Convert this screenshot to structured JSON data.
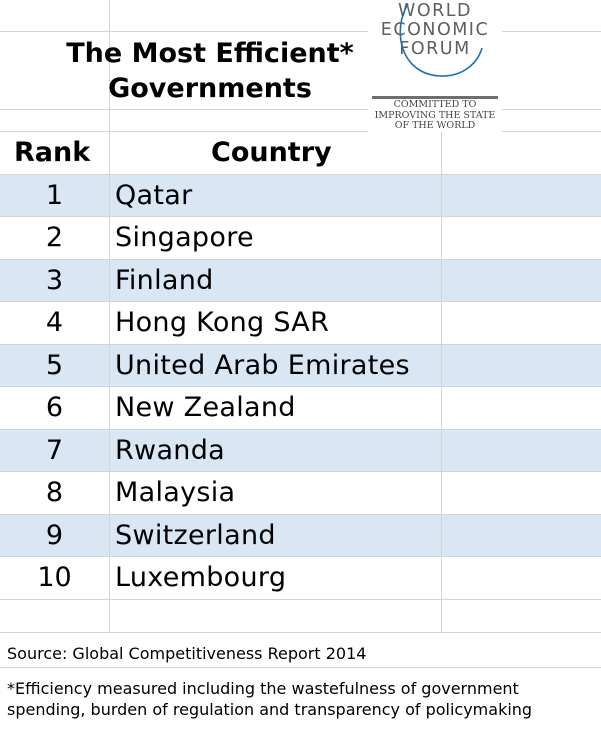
{
  "title_line1": "The Most Efficient*",
  "title_line2": "Governments",
  "logo": {
    "line1": "WORLD",
    "line2": "ECONOMIC",
    "line3": "FORUM",
    "tag1": "COMMITTED TO",
    "tag2": "IMPROVING THE STATE",
    "tag3": "OF THE WORLD"
  },
  "table": {
    "headers": [
      "Rank",
      "Country"
    ],
    "rows": [
      {
        "rank": "1",
        "country": "Qatar"
      },
      {
        "rank": "2",
        "country": "Singapore"
      },
      {
        "rank": "3",
        "country": "Finland"
      },
      {
        "rank": "4",
        "country": "Hong Kong SAR"
      },
      {
        "rank": "5",
        "country": "United Arab Emirates"
      },
      {
        "rank": "6",
        "country": "New Zealand"
      },
      {
        "rank": "7",
        "country": "Rwanda"
      },
      {
        "rank": "8",
        "country": "Malaysia"
      },
      {
        "rank": "9",
        "country": "Switzerland"
      },
      {
        "rank": "10",
        "country": "Luxembourg"
      }
    ]
  },
  "source": "Source: Global Competitiveness Report 2014",
  "footnote": "*Efficiency measured including the wastefulness of government spending, burden of regulation and transparency of policymaking",
  "colors": {
    "row_shade": "#d9e6f3",
    "grid": "#d4d4d4"
  }
}
